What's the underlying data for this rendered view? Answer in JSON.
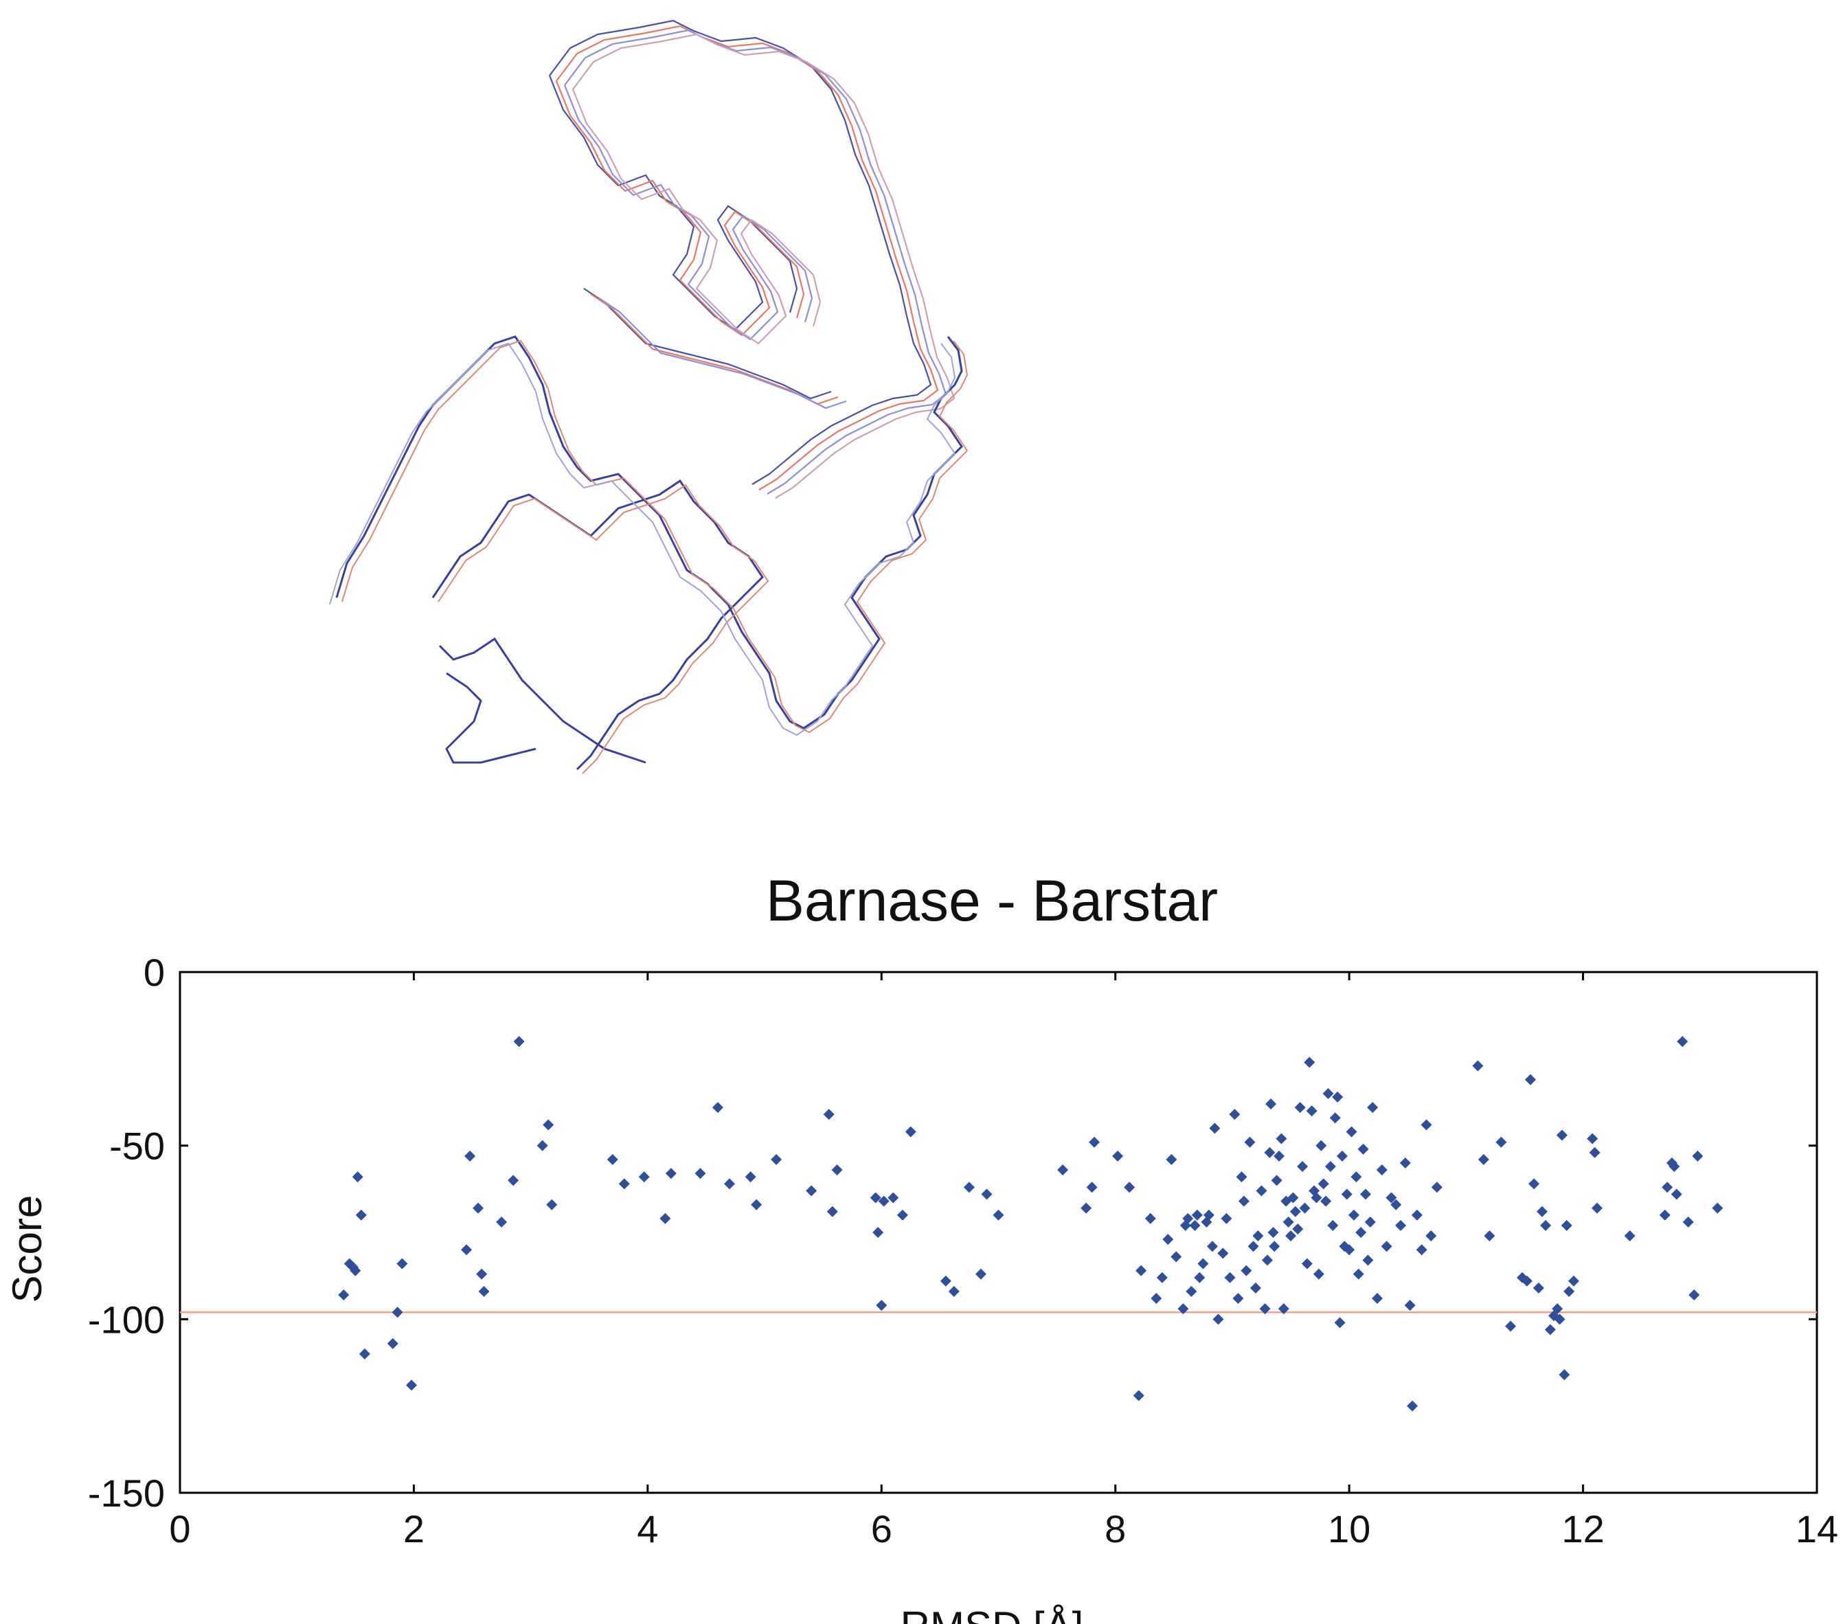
{
  "chart_data": {
    "type": "scatter",
    "title": "Barnase - Barstar",
    "xlabel": "RMSD [Å]",
    "ylabel": "Score",
    "xlim": [
      0,
      14
    ],
    "ylim": [
      -150,
      0
    ],
    "xticks": [
      0,
      2,
      4,
      6,
      8,
      10,
      12,
      14
    ],
    "yticks": [
      0,
      -50,
      -100,
      -150
    ],
    "grid": false,
    "colors": {
      "points": "#2f4f9a",
      "reference_line": "#f0a090",
      "axis": "#000000"
    },
    "reference_line": {
      "y": -98
    },
    "points": [
      [
        1.4,
        -93
      ],
      [
        1.45,
        -84
      ],
      [
        1.48,
        -85
      ],
      [
        1.5,
        -86
      ],
      [
        1.52,
        -59
      ],
      [
        1.55,
        -70
      ],
      [
        1.58,
        -110
      ],
      [
        1.82,
        -107
      ],
      [
        1.86,
        -98
      ],
      [
        1.9,
        -84
      ],
      [
        1.98,
        -119
      ],
      [
        2.45,
        -80
      ],
      [
        2.48,
        -53
      ],
      [
        2.55,
        -68
      ],
      [
        2.58,
        -87
      ],
      [
        2.6,
        -92
      ],
      [
        2.75,
        -72
      ],
      [
        2.85,
        -60
      ],
      [
        2.9,
        -20
      ],
      [
        3.1,
        -50
      ],
      [
        3.15,
        -44
      ],
      [
        3.18,
        -67
      ],
      [
        3.7,
        -54
      ],
      [
        3.8,
        -61
      ],
      [
        3.97,
        -59
      ],
      [
        4.15,
        -71
      ],
      [
        4.2,
        -58
      ],
      [
        4.45,
        -58
      ],
      [
        4.6,
        -39
      ],
      [
        4.7,
        -61
      ],
      [
        4.88,
        -59
      ],
      [
        4.93,
        -67
      ],
      [
        5.1,
        -54
      ],
      [
        5.4,
        -63
      ],
      [
        5.55,
        -41
      ],
      [
        5.58,
        -69
      ],
      [
        5.62,
        -57
      ],
      [
        5.95,
        -65
      ],
      [
        5.97,
        -75
      ],
      [
        6.0,
        -96
      ],
      [
        6.02,
        -66
      ],
      [
        6.1,
        -65
      ],
      [
        6.18,
        -70
      ],
      [
        6.25,
        -46
      ],
      [
        6.55,
        -89
      ],
      [
        6.62,
        -92
      ],
      [
        6.75,
        -62
      ],
      [
        6.85,
        -87
      ],
      [
        6.9,
        -64
      ],
      [
        7.0,
        -70
      ],
      [
        7.55,
        -57
      ],
      [
        7.75,
        -68
      ],
      [
        7.8,
        -62
      ],
      [
        7.82,
        -49
      ],
      [
        8.02,
        -53
      ],
      [
        8.12,
        -62
      ],
      [
        8.2,
        -122
      ],
      [
        8.22,
        -86
      ],
      [
        8.3,
        -71
      ],
      [
        8.35,
        -94
      ],
      [
        8.4,
        -88
      ],
      [
        8.45,
        -77
      ],
      [
        8.48,
        -54
      ],
      [
        8.52,
        -82
      ],
      [
        8.58,
        -97
      ],
      [
        8.6,
        -73
      ],
      [
        8.62,
        -71
      ],
      [
        8.65,
        -92
      ],
      [
        8.68,
        -73
      ],
      [
        8.7,
        -70
      ],
      [
        8.72,
        -88
      ],
      [
        8.75,
        -84
      ],
      [
        8.78,
        -72
      ],
      [
        8.8,
        -70
      ],
      [
        8.83,
        -79
      ],
      [
        8.85,
        -45
      ],
      [
        8.88,
        -100
      ],
      [
        8.92,
        -81
      ],
      [
        8.95,
        -71
      ],
      [
        8.98,
        -88
      ],
      [
        9.02,
        -41
      ],
      [
        9.05,
        -94
      ],
      [
        9.08,
        -59
      ],
      [
        9.1,
        -66
      ],
      [
        9.12,
        -86
      ],
      [
        9.15,
        -49
      ],
      [
        9.18,
        -79
      ],
      [
        9.2,
        -91
      ],
      [
        9.22,
        -76
      ],
      [
        9.25,
        -63
      ],
      [
        9.28,
        -97
      ],
      [
        9.3,
        -83
      ],
      [
        9.32,
        -52
      ],
      [
        9.33,
        -38
      ],
      [
        9.35,
        -75
      ],
      [
        9.36,
        -79
      ],
      [
        9.38,
        -60
      ],
      [
        9.4,
        -53
      ],
      [
        9.42,
        -48
      ],
      [
        9.44,
        -97
      ],
      [
        9.46,
        -66
      ],
      [
        9.48,
        -72
      ],
      [
        9.5,
        -76
      ],
      [
        9.52,
        -65
      ],
      [
        9.54,
        -69
      ],
      [
        9.56,
        -74
      ],
      [
        9.58,
        -39
      ],
      [
        9.6,
        -56
      ],
      [
        9.62,
        -68
      ],
      [
        9.64,
        -84
      ],
      [
        9.66,
        -26
      ],
      [
        9.68,
        -40
      ],
      [
        9.7,
        -63
      ],
      [
        9.72,
        -65
      ],
      [
        9.74,
        -87
      ],
      [
        9.76,
        -50
      ],
      [
        9.78,
        -61
      ],
      [
        9.8,
        -66
      ],
      [
        9.82,
        -35
      ],
      [
        9.84,
        -56
      ],
      [
        9.86,
        -73
      ],
      [
        9.88,
        -42
      ],
      [
        9.9,
        -36
      ],
      [
        9.92,
        -101
      ],
      [
        9.94,
        -53
      ],
      [
        9.96,
        -79
      ],
      [
        9.98,
        -64
      ],
      [
        10.0,
        -80
      ],
      [
        10.02,
        -46
      ],
      [
        10.04,
        -70
      ],
      [
        10.06,
        -59
      ],
      [
        10.08,
        -87
      ],
      [
        10.1,
        -75
      ],
      [
        10.12,
        -51
      ],
      [
        10.14,
        -64
      ],
      [
        10.16,
        -83
      ],
      [
        10.18,
        -72
      ],
      [
        10.2,
        -39
      ],
      [
        10.24,
        -94
      ],
      [
        10.28,
        -57
      ],
      [
        10.32,
        -79
      ],
      [
        10.36,
        -65
      ],
      [
        10.4,
        -67
      ],
      [
        10.44,
        -73
      ],
      [
        10.48,
        -55
      ],
      [
        10.52,
        -96
      ],
      [
        10.54,
        -125
      ],
      [
        10.58,
        -70
      ],
      [
        10.62,
        -80
      ],
      [
        10.66,
        -44
      ],
      [
        10.7,
        -76
      ],
      [
        10.75,
        -62
      ],
      [
        11.1,
        -27
      ],
      [
        11.15,
        -54
      ],
      [
        11.2,
        -76
      ],
      [
        11.3,
        -49
      ],
      [
        11.38,
        -102
      ],
      [
        11.48,
        -88
      ],
      [
        11.52,
        -89
      ],
      [
        11.55,
        -31
      ],
      [
        11.58,
        -61
      ],
      [
        11.62,
        -91
      ],
      [
        11.65,
        -69
      ],
      [
        11.68,
        -73
      ],
      [
        11.72,
        -103
      ],
      [
        11.75,
        -99
      ],
      [
        11.78,
        -97
      ],
      [
        11.8,
        -100
      ],
      [
        11.82,
        -47
      ],
      [
        11.84,
        -116
      ],
      [
        11.86,
        -73
      ],
      [
        11.88,
        -92
      ],
      [
        11.92,
        -89
      ],
      [
        12.08,
        -48
      ],
      [
        12.1,
        -52
      ],
      [
        12.12,
        -68
      ],
      [
        12.4,
        -76
      ],
      [
        12.7,
        -70
      ],
      [
        12.72,
        -62
      ],
      [
        12.76,
        -55
      ],
      [
        12.78,
        -56
      ],
      [
        12.8,
        -64
      ],
      [
        12.85,
        -20
      ],
      [
        12.9,
        -72
      ],
      [
        12.95,
        -93
      ],
      [
        12.98,
        -53
      ],
      [
        13.15,
        -68
      ]
    ]
  }
}
